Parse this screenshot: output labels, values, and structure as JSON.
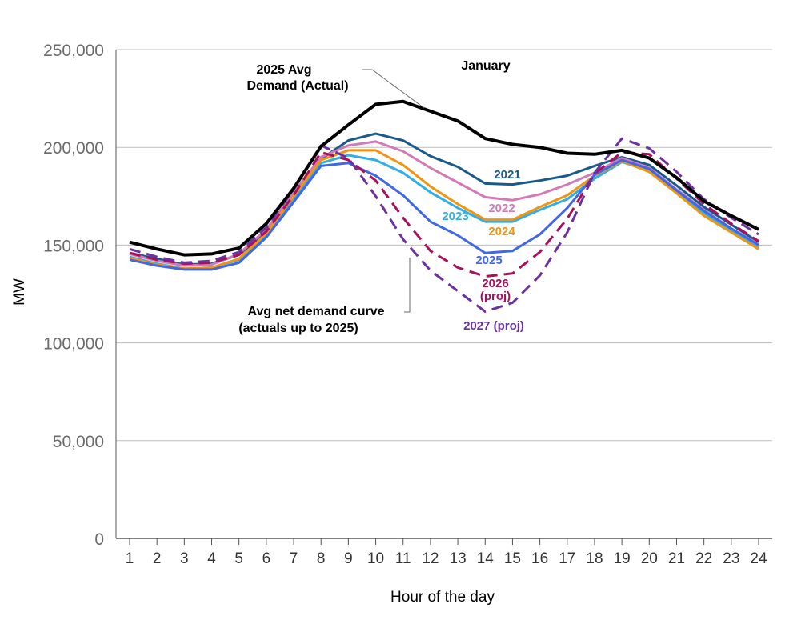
{
  "chart_data": {
    "type": "line",
    "title": "January",
    "xlabel": "Hour of the day",
    "ylabel": "MW",
    "ylim": [
      0,
      250000
    ],
    "y_ticks": [
      "0",
      "50,000",
      "100,000",
      "150,000",
      "200,000",
      "250,000"
    ],
    "y_tick_values": [
      0,
      50000,
      100000,
      150000,
      200000,
      250000
    ],
    "x": [
      1,
      2,
      3,
      4,
      5,
      6,
      7,
      8,
      9,
      10,
      11,
      12,
      13,
      14,
      15,
      16,
      17,
      18,
      19,
      20,
      21,
      22,
      23,
      24
    ],
    "grid": true,
    "series": [
      {
        "name": "2025 Avg Demand (Actual)",
        "color": "#000000",
        "dashed": false,
        "width": 4,
        "values": [
          151500,
          148000,
          145000,
          145500,
          148500,
          161000,
          179000,
          200500,
          211500,
          222000,
          223500,
          218500,
          213500,
          204500,
          201500,
          200000,
          197000,
          196500,
          198500,
          194500,
          184500,
          172500,
          165000,
          158000
        ]
      },
      {
        "name": "2021",
        "color": "#1a5a8a",
        "dashed": false,
        "width": 3,
        "values": [
          146000,
          143000,
          140000,
          140500,
          145000,
          157000,
          176000,
          194000,
          203500,
          207000,
          203500,
          195500,
          190000,
          181500,
          181000,
          183000,
          185500,
          190500,
          195000,
          191000,
          180500,
          169500,
          160500,
          151500
        ]
      },
      {
        "name": "2022",
        "color": "#d27ab5",
        "dashed": false,
        "width": 3,
        "values": [
          145500,
          142000,
          139500,
          140000,
          145500,
          158000,
          177000,
          195000,
          201000,
          203000,
          198000,
          189500,
          182000,
          174500,
          173000,
          176000,
          181000,
          187000,
          194500,
          189500,
          178500,
          168000,
          158500,
          150500
        ]
      },
      {
        "name": "2023",
        "color": "#31aee6",
        "dashed": false,
        "width": 3,
        "values": [
          144000,
          140500,
          138000,
          138500,
          142500,
          155000,
          173500,
          192000,
          196000,
          193500,
          187000,
          177000,
          169000,
          162000,
          162000,
          168000,
          173500,
          184000,
          192500,
          188000,
          177500,
          166500,
          157500,
          148500
        ]
      },
      {
        "name": "2024",
        "color": "#f29410",
        "dashed": false,
        "width": 3,
        "values": [
          143500,
          140000,
          138000,
          138500,
          143000,
          156000,
          175000,
          193500,
          198500,
          198500,
          191000,
          180000,
          171000,
          163000,
          163000,
          169500,
          175500,
          185500,
          193000,
          187500,
          176500,
          165000,
          156500,
          148000
        ]
      },
      {
        "name": "2025",
        "color": "#3f67e8",
        "dashed": false,
        "width": 3,
        "values": [
          142500,
          139500,
          137500,
          137500,
          141000,
          154000,
          172000,
          190500,
          192000,
          185500,
          175500,
          162000,
          155000,
          146000,
          147000,
          155500,
          169000,
          186000,
          193500,
          189000,
          178000,
          167500,
          158500,
          150000
        ]
      },
      {
        "name": "2026 (proj)",
        "color": "#a8105c",
        "dashed": true,
        "width": 3,
        "values": [
          146000,
          142500,
          140500,
          141000,
          145000,
          157000,
          175500,
          197500,
          193500,
          183000,
          164000,
          147000,
          138500,
          134000,
          135500,
          146500,
          163500,
          186500,
          197500,
          196500,
          184000,
          171000,
          161000,
          152000
        ]
      },
      {
        "name": "2027 (proj)",
        "color": "#6a329f",
        "dashed": true,
        "width": 3,
        "values": [
          148000,
          144000,
          141000,
          142000,
          146500,
          159000,
          178500,
          201000,
          194500,
          175000,
          153000,
          137000,
          126500,
          116000,
          120500,
          134500,
          156500,
          187000,
          204500,
          199500,
          187500,
          173500,
          164000,
          155500
        ]
      }
    ],
    "labels": {
      "avg_demand_line1": "2025 Avg",
      "avg_demand_line2": "Demand (Actual)",
      "net_curve_line1": "Avg net demand curve",
      "net_curve_line2": "(actuals up to 2025)",
      "y2021": "2021",
      "y2022": "2022",
      "y2023": "2023",
      "y2024": "2024",
      "y2025": "2025",
      "y2026a": "2026",
      "y2026b": "(proj)",
      "y2027": "2027 (proj)"
    }
  }
}
